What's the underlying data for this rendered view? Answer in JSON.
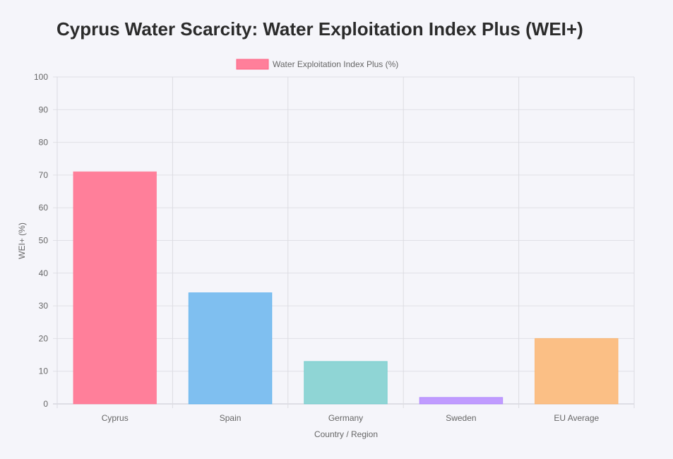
{
  "title": "Cyprus Water Scarcity: Water Exploitation Index Plus (WEI+)",
  "chart_data": {
    "type": "bar",
    "title": "Cyprus Water Scarcity: Water Exploitation Index Plus (WEI+)",
    "categories": [
      "Cyprus",
      "Spain",
      "Germany",
      "Sweden",
      "EU Average"
    ],
    "series": [
      {
        "name": "Water Exploitation Index Plus (%)",
        "values": [
          71,
          34,
          13,
          2,
          20
        ],
        "colors": [
          "#ff7f9a",
          "#7fbff0",
          "#8fd5d5",
          "#c09bff",
          "#fbbf85"
        ],
        "border_colors": [
          "#ff6384",
          "#36a2eb",
          "#4bc0c0",
          "#9966ff",
          "#ff9f40"
        ]
      }
    ],
    "xlabel": "Country / Region",
    "ylabel": "WEI+ (%)",
    "ylim": [
      0,
      100
    ],
    "yticks": [
      0,
      10,
      20,
      30,
      40,
      50,
      60,
      70,
      80,
      90,
      100
    ],
    "grid": true,
    "legend_position": "top-center"
  }
}
